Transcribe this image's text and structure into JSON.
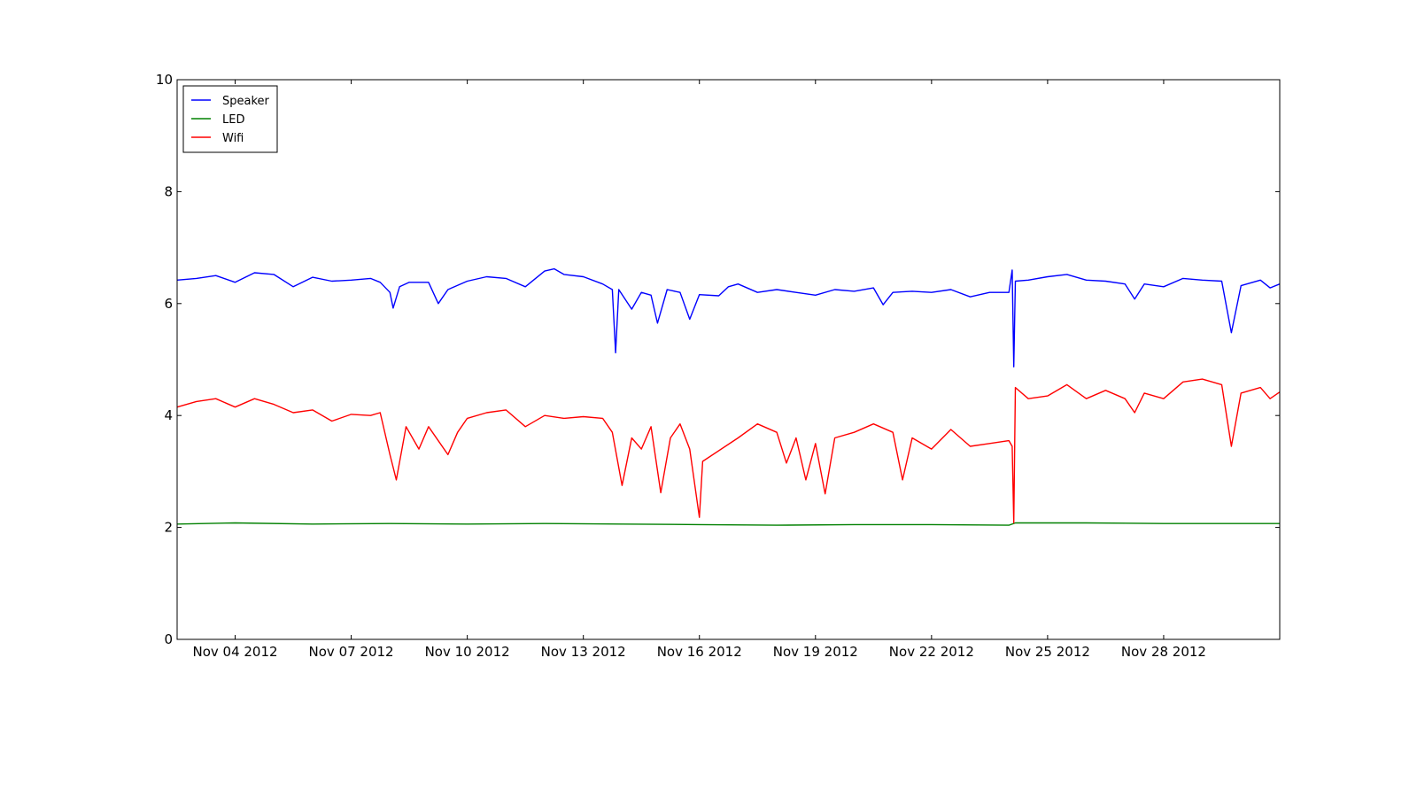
{
  "chart_data": {
    "type": "line",
    "title": "",
    "xlabel": "",
    "ylabel": "",
    "grid": false,
    "legend_placement": "top-left",
    "xlim": [
      "2012-11-02T12:00",
      "2012-12-01T00:00"
    ],
    "ylim": [
      0,
      10
    ],
    "x_ticks": [
      {
        "date": "2012-11-04",
        "label": "Nov 04 2012"
      },
      {
        "date": "2012-11-07",
        "label": "Nov 07 2012"
      },
      {
        "date": "2012-11-10",
        "label": "Nov 10 2012"
      },
      {
        "date": "2012-11-13",
        "label": "Nov 13 2012"
      },
      {
        "date": "2012-11-16",
        "label": "Nov 16 2012"
      },
      {
        "date": "2012-11-19",
        "label": "Nov 19 2012"
      },
      {
        "date": "2012-11-22",
        "label": "Nov 22 2012"
      },
      {
        "date": "2012-11-25",
        "label": "Nov 25 2012"
      },
      {
        "date": "2012-11-28",
        "label": "Nov 28 2012"
      }
    ],
    "y_ticks": [
      {
        "value": 0,
        "label": "0"
      },
      {
        "value": 2,
        "label": "2"
      },
      {
        "value": 4,
        "label": "4"
      },
      {
        "value": 6,
        "label": "6"
      },
      {
        "value": 8,
        "label": "8"
      },
      {
        "value": 10,
        "label": "10"
      }
    ],
    "series": [
      {
        "name": "Speaker",
        "color": "#0000ff",
        "points": [
          [
            "2012-11-02T12:00",
            6.42
          ],
          [
            "2012-11-03T00:00",
            6.45
          ],
          [
            "2012-11-03T12:00",
            6.5
          ],
          [
            "2012-11-04T00:00",
            6.38
          ],
          [
            "2012-11-04T12:00",
            6.55
          ],
          [
            "2012-11-05T00:00",
            6.52
          ],
          [
            "2012-11-05T12:00",
            6.3
          ],
          [
            "2012-11-06T00:00",
            6.47
          ],
          [
            "2012-11-06T12:00",
            6.4
          ],
          [
            "2012-11-07T00:00",
            6.42
          ],
          [
            "2012-11-07T12:00",
            6.45
          ],
          [
            "2012-11-07T18:00",
            6.38
          ],
          [
            "2012-11-08T00:00",
            6.2
          ],
          [
            "2012-11-08T02:00",
            5.92
          ],
          [
            "2012-11-08T06:00",
            6.3
          ],
          [
            "2012-11-08T12:00",
            6.38
          ],
          [
            "2012-11-09T00:00",
            6.38
          ],
          [
            "2012-11-09T06:00",
            6.0
          ],
          [
            "2012-11-09T12:00",
            6.25
          ],
          [
            "2012-11-10T00:00",
            6.4
          ],
          [
            "2012-11-10T12:00",
            6.48
          ],
          [
            "2012-11-11T00:00",
            6.45
          ],
          [
            "2012-11-11T12:00",
            6.3
          ],
          [
            "2012-11-12T00:00",
            6.58
          ],
          [
            "2012-11-12T06:00",
            6.62
          ],
          [
            "2012-11-12T12:00",
            6.52
          ],
          [
            "2012-11-13T00:00",
            6.48
          ],
          [
            "2012-11-13T12:00",
            6.35
          ],
          [
            "2012-11-13T18:00",
            6.25
          ],
          [
            "2012-11-13T20:00",
            5.12
          ],
          [
            "2012-11-13T22:00",
            6.25
          ],
          [
            "2012-11-14T06:00",
            5.9
          ],
          [
            "2012-11-14T12:00",
            6.2
          ],
          [
            "2012-11-14T18:00",
            6.15
          ],
          [
            "2012-11-14T22:00",
            5.65
          ],
          [
            "2012-11-15T04:00",
            6.25
          ],
          [
            "2012-11-15T12:00",
            6.2
          ],
          [
            "2012-11-15T18:00",
            5.72
          ],
          [
            "2012-11-16T00:00",
            6.16
          ],
          [
            "2012-11-16T12:00",
            6.14
          ],
          [
            "2012-11-16T18:00",
            6.3
          ],
          [
            "2012-11-17T00:00",
            6.35
          ],
          [
            "2012-11-17T12:00",
            6.2
          ],
          [
            "2012-11-18T00:00",
            6.25
          ],
          [
            "2012-11-18T12:00",
            6.2
          ],
          [
            "2012-11-19T00:00",
            6.15
          ],
          [
            "2012-11-19T12:00",
            6.25
          ],
          [
            "2012-11-20T00:00",
            6.22
          ],
          [
            "2012-11-20T12:00",
            6.28
          ],
          [
            "2012-11-20T18:00",
            5.98
          ],
          [
            "2012-11-21T00:00",
            6.2
          ],
          [
            "2012-11-21T12:00",
            6.22
          ],
          [
            "2012-11-22T00:00",
            6.2
          ],
          [
            "2012-11-22T12:00",
            6.25
          ],
          [
            "2012-11-23T00:00",
            6.12
          ],
          [
            "2012-11-23T12:00",
            6.2
          ],
          [
            "2012-11-24T00:00",
            6.2
          ],
          [
            "2012-11-24T02:00",
            6.6
          ],
          [
            "2012-11-24T03:00",
            4.87
          ],
          [
            "2012-11-24T04:00",
            6.4
          ],
          [
            "2012-11-24T12:00",
            6.42
          ],
          [
            "2012-11-25T00:00",
            6.48
          ],
          [
            "2012-11-25T12:00",
            6.52
          ],
          [
            "2012-11-26T00:00",
            6.42
          ],
          [
            "2012-11-26T12:00",
            6.4
          ],
          [
            "2012-11-27T00:00",
            6.35
          ],
          [
            "2012-11-27T06:00",
            6.08
          ],
          [
            "2012-11-27T12:00",
            6.35
          ],
          [
            "2012-11-28T00:00",
            6.3
          ],
          [
            "2012-11-28T12:00",
            6.45
          ],
          [
            "2012-11-29T00:00",
            6.42
          ],
          [
            "2012-11-29T12:00",
            6.4
          ],
          [
            "2012-11-29T18:00",
            5.48
          ],
          [
            "2012-11-30T00:00",
            6.32
          ],
          [
            "2012-11-30T12:00",
            6.42
          ],
          [
            "2012-11-30T18:00",
            6.28
          ],
          [
            "2012-12-01T00:00",
            6.35
          ]
        ]
      },
      {
        "name": "LED",
        "color": "#008000",
        "points": [
          [
            "2012-11-02T12:00",
            2.06
          ],
          [
            "2012-11-04T00:00",
            2.08
          ],
          [
            "2012-11-06T00:00",
            2.06
          ],
          [
            "2012-11-08T00:00",
            2.07
          ],
          [
            "2012-11-10T00:00",
            2.06
          ],
          [
            "2012-11-12T00:00",
            2.07
          ],
          [
            "2012-11-14T00:00",
            2.06
          ],
          [
            "2012-11-16T00:00",
            2.05
          ],
          [
            "2012-11-18T00:00",
            2.04
          ],
          [
            "2012-11-20T00:00",
            2.05
          ],
          [
            "2012-11-22T00:00",
            2.05
          ],
          [
            "2012-11-24T00:00",
            2.04
          ],
          [
            "2012-11-24T04:00",
            2.08
          ],
          [
            "2012-11-26T00:00",
            2.08
          ],
          [
            "2012-11-28T00:00",
            2.07
          ],
          [
            "2012-11-30T00:00",
            2.07
          ],
          [
            "2012-12-01T00:00",
            2.07
          ]
        ]
      },
      {
        "name": "Wifi",
        "color": "#ff0000",
        "points": [
          [
            "2012-11-02T12:00",
            4.15
          ],
          [
            "2012-11-03T00:00",
            4.25
          ],
          [
            "2012-11-03T12:00",
            4.3
          ],
          [
            "2012-11-04T00:00",
            4.15
          ],
          [
            "2012-11-04T12:00",
            4.3
          ],
          [
            "2012-11-05T00:00",
            4.2
          ],
          [
            "2012-11-05T12:00",
            4.05
          ],
          [
            "2012-11-06T00:00",
            4.1
          ],
          [
            "2012-11-06T12:00",
            3.9
          ],
          [
            "2012-11-07T00:00",
            4.02
          ],
          [
            "2012-11-07T12:00",
            4.0
          ],
          [
            "2012-11-07T18:00",
            4.05
          ],
          [
            "2012-11-08T00:00",
            3.3
          ],
          [
            "2012-11-08T04:00",
            2.85
          ],
          [
            "2012-11-08T10:00",
            3.8
          ],
          [
            "2012-11-08T18:00",
            3.4
          ],
          [
            "2012-11-09T00:00",
            3.8
          ],
          [
            "2012-11-09T12:00",
            3.3
          ],
          [
            "2012-11-09T18:00",
            3.7
          ],
          [
            "2012-11-10T00:00",
            3.95
          ],
          [
            "2012-11-10T12:00",
            4.05
          ],
          [
            "2012-11-11T00:00",
            4.1
          ],
          [
            "2012-11-11T12:00",
            3.8
          ],
          [
            "2012-11-12T00:00",
            4.0
          ],
          [
            "2012-11-12T12:00",
            3.95
          ],
          [
            "2012-11-13T00:00",
            3.98
          ],
          [
            "2012-11-13T12:00",
            3.95
          ],
          [
            "2012-11-13T18:00",
            3.7
          ],
          [
            "2012-11-14T00:00",
            2.75
          ],
          [
            "2012-11-14T06:00",
            3.6
          ],
          [
            "2012-11-14T12:00",
            3.4
          ],
          [
            "2012-11-14T18:00",
            3.8
          ],
          [
            "2012-11-15T00:00",
            2.62
          ],
          [
            "2012-11-15T06:00",
            3.6
          ],
          [
            "2012-11-15T12:00",
            3.85
          ],
          [
            "2012-11-15T18:00",
            3.4
          ],
          [
            "2012-11-16T00:00",
            2.18
          ],
          [
            "2012-11-16T02:00",
            3.18
          ],
          [
            "2012-11-17T00:00",
            3.6
          ],
          [
            "2012-11-17T12:00",
            3.85
          ],
          [
            "2012-11-18T00:00",
            3.7
          ],
          [
            "2012-11-18T06:00",
            3.15
          ],
          [
            "2012-11-18T12:00",
            3.6
          ],
          [
            "2012-11-18T18:00",
            2.85
          ],
          [
            "2012-11-19T00:00",
            3.5
          ],
          [
            "2012-11-19T06:00",
            2.6
          ],
          [
            "2012-11-19T12:00",
            3.6
          ],
          [
            "2012-11-20T00:00",
            3.7
          ],
          [
            "2012-11-20T12:00",
            3.85
          ],
          [
            "2012-11-21T00:00",
            3.7
          ],
          [
            "2012-11-21T06:00",
            2.85
          ],
          [
            "2012-11-21T12:00",
            3.6
          ],
          [
            "2012-11-22T00:00",
            3.4
          ],
          [
            "2012-11-22T12:00",
            3.75
          ],
          [
            "2012-11-23T00:00",
            3.45
          ],
          [
            "2012-11-23T12:00",
            3.5
          ],
          [
            "2012-11-24T00:00",
            3.55
          ],
          [
            "2012-11-24T02:00",
            3.45
          ],
          [
            "2012-11-24T03:00",
            2.08
          ],
          [
            "2012-11-24T04:00",
            4.5
          ],
          [
            "2012-11-24T12:00",
            4.3
          ],
          [
            "2012-11-25T00:00",
            4.35
          ],
          [
            "2012-11-25T12:00",
            4.55
          ],
          [
            "2012-11-26T00:00",
            4.3
          ],
          [
            "2012-11-26T12:00",
            4.45
          ],
          [
            "2012-11-27T00:00",
            4.3
          ],
          [
            "2012-11-27T06:00",
            4.05
          ],
          [
            "2012-11-27T12:00",
            4.4
          ],
          [
            "2012-11-28T00:00",
            4.3
          ],
          [
            "2012-11-28T12:00",
            4.6
          ],
          [
            "2012-11-29T00:00",
            4.65
          ],
          [
            "2012-11-29T12:00",
            4.55
          ],
          [
            "2012-11-29T18:00",
            3.45
          ],
          [
            "2012-11-30T00:00",
            4.4
          ],
          [
            "2012-11-30T12:00",
            4.5
          ],
          [
            "2012-11-30T18:00",
            4.3
          ],
          [
            "2012-12-01T00:00",
            4.42
          ]
        ]
      }
    ]
  }
}
